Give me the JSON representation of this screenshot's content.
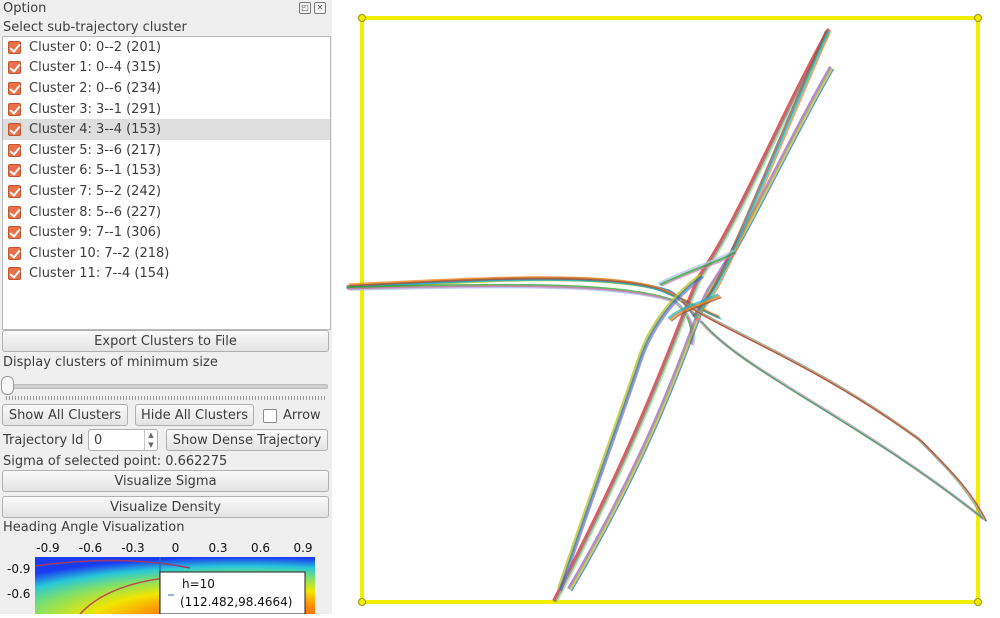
{
  "panel": {
    "title": "Option",
    "float_icon": "float-icon",
    "close_icon": "close-icon",
    "select_label": "Select sub-trajectory cluster",
    "clusters": [
      {
        "label": "Cluster 0: 0--2 (201)",
        "checked": true,
        "selected": false
      },
      {
        "label": "Cluster 1: 0--4 (315)",
        "checked": true,
        "selected": false
      },
      {
        "label": "Cluster 2: 0--6 (234)",
        "checked": true,
        "selected": false
      },
      {
        "label": "Cluster 3: 3--1 (291)",
        "checked": true,
        "selected": false
      },
      {
        "label": "Cluster 4: 3--4 (153)",
        "checked": true,
        "selected": true
      },
      {
        "label": "Cluster 5: 3--6 (217)",
        "checked": true,
        "selected": false
      },
      {
        "label": "Cluster 6: 5--1 (153)",
        "checked": true,
        "selected": false
      },
      {
        "label": "Cluster 7: 5--2 (242)",
        "checked": true,
        "selected": false
      },
      {
        "label": "Cluster 8: 5--6 (227)",
        "checked": true,
        "selected": false
      },
      {
        "label": "Cluster 9: 7--1 (306)",
        "checked": true,
        "selected": false
      },
      {
        "label": "Cluster 10: 7--2 (218)",
        "checked": true,
        "selected": false
      },
      {
        "label": "Cluster 11: 7--4 (154)",
        "checked": true,
        "selected": false
      }
    ],
    "export_button": "Export Clusters to File",
    "min_size_label": "Display clusters of minimum size",
    "min_size_value": 0,
    "show_all_button": "Show All Clusters",
    "hide_all_button": "Hide All Clusters",
    "arrow_label": "Arrow",
    "arrow_checked": false,
    "trajectory_id_label": "Trajectory Id",
    "trajectory_id_value": "0",
    "show_dense_button": "Show Dense Trajectory",
    "sigma_text": "Sigma of selected point: 0.662275",
    "visualize_sigma_button": "Visualize Sigma",
    "visualize_density_button": "Visualize Density",
    "heading_label": "Heading Angle Visualization",
    "heatmap": {
      "x_ticks": [
        "-0.9",
        "-0.6",
        "-0.3",
        "0",
        "0.3",
        "0.6",
        "0.9"
      ],
      "y_ticks": [
        "-0.9",
        "-0.6"
      ],
      "tooltip_line1": "h=10",
      "tooltip_line2": "(112.482,98.4664)"
    }
  },
  "canvas": {
    "frame_color": "#f2ee00",
    "cluster_colors": [
      "#1f77b4",
      "#ff7f0e",
      "#2ca02c",
      "#d62728",
      "#9467bd",
      "#8c564b",
      "#e377c2",
      "#7f7f7f",
      "#bcbd22",
      "#17becf",
      "#aec7e8",
      "#98df8a"
    ]
  }
}
